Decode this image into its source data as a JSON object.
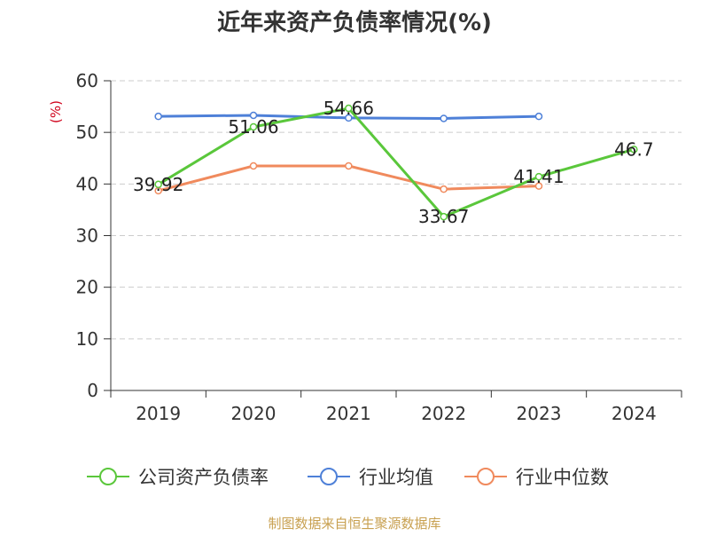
{
  "chart_data": {
    "type": "line",
    "title": "近年来资产负债率情况(%)",
    "ylabel": "(%)",
    "xlabel": "",
    "categories": [
      "2019",
      "2020",
      "2021",
      "2022",
      "2023",
      "2024"
    ],
    "ylim": [
      0,
      60
    ],
    "yticks": [
      0,
      10,
      20,
      30,
      40,
      50,
      60
    ],
    "grid": true,
    "legend_position": "bottom",
    "series": [
      {
        "name": "公司资产负债率",
        "color": "#5ac73b",
        "values": [
          39.92,
          51.06,
          54.66,
          33.67,
          41.41,
          46.7
        ],
        "labels": [
          "39.92",
          "51.06",
          "54.66",
          "33.67",
          "41.41",
          "46.7"
        ]
      },
      {
        "name": "行业均值",
        "color": "#4e80d8",
        "values": [
          53.1,
          53.3,
          52.8,
          52.7,
          53.1,
          null
        ]
      },
      {
        "name": "行业中位数",
        "color": "#f08a5d",
        "values": [
          38.7,
          43.5,
          43.5,
          39.0,
          39.6,
          null
        ]
      }
    ]
  },
  "source": "制图数据来自恒生聚源数据库",
  "colors": {
    "title": "#333333",
    "ylabel": "#d0021b",
    "axis": "#333333",
    "grid": "#cccccc",
    "source": "#c8a050"
  }
}
